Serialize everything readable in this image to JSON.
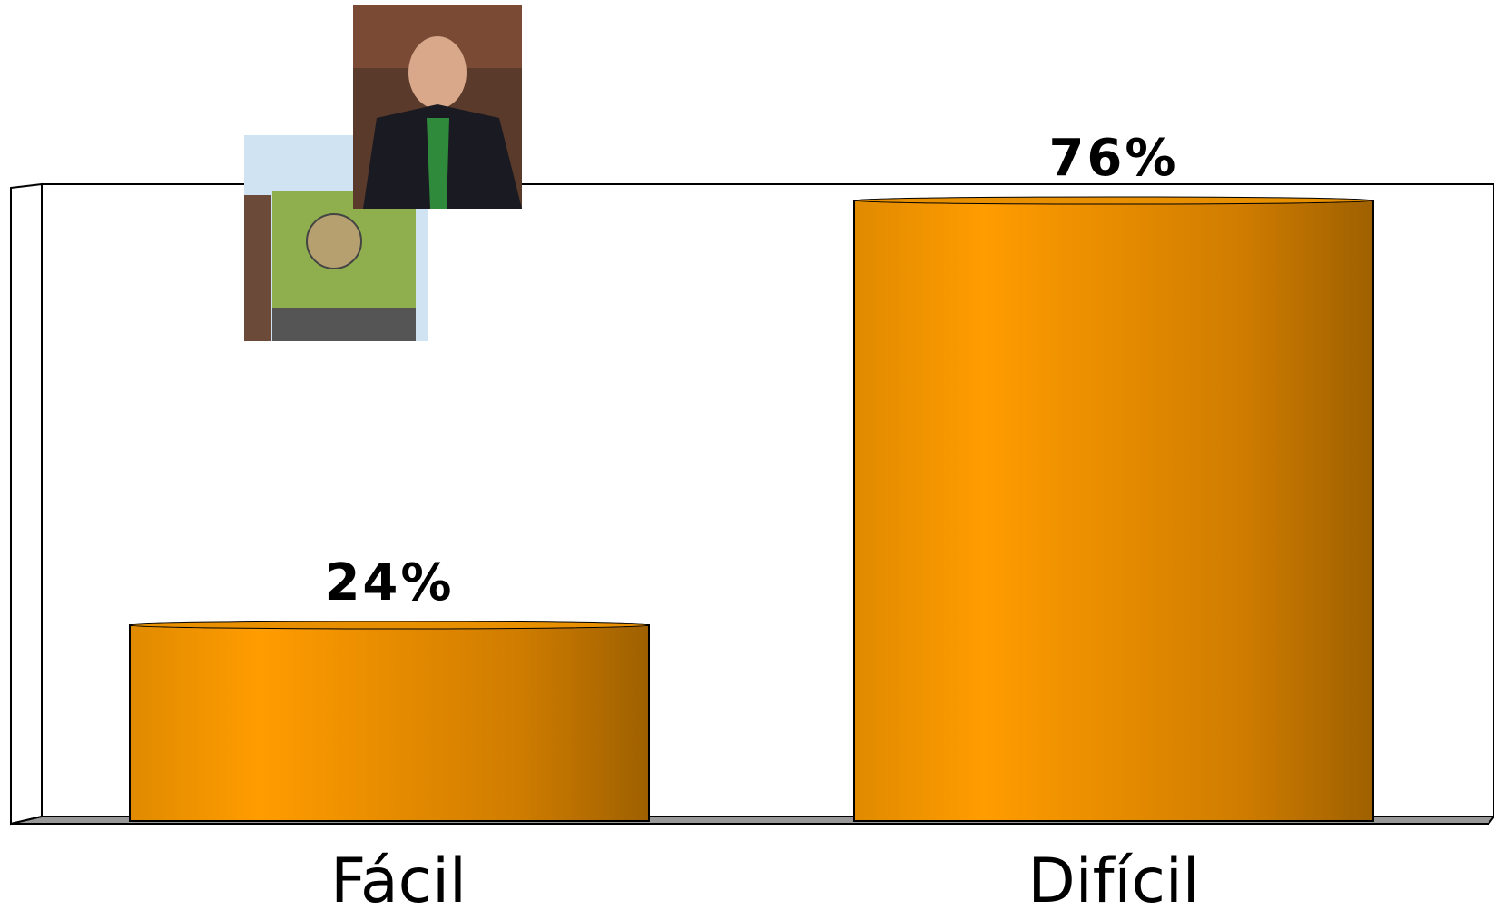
{
  "chart_data": {
    "type": "bar",
    "categories": [
      "Fácil",
      "Difícil"
    ],
    "values": [
      24,
      76
    ],
    "value_labels": [
      "24%",
      "76%"
    ],
    "color": "#f39200"
  }
}
